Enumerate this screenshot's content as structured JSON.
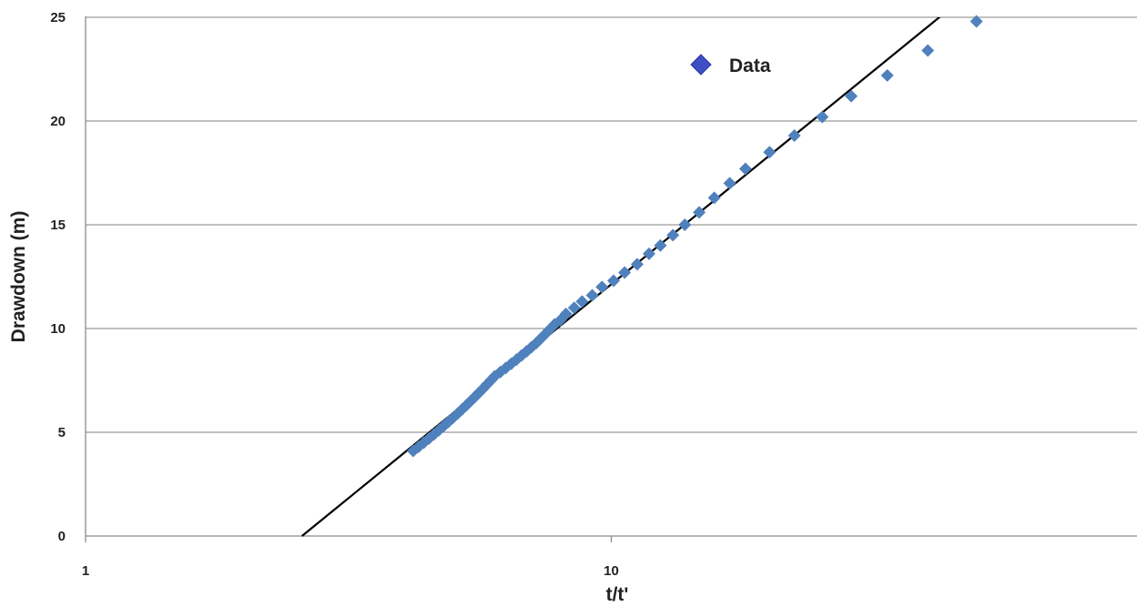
{
  "chart_data": {
    "type": "scatter",
    "title": "",
    "xlabel": "t/t'",
    "ylabel": "Drawdown (m)",
    "x_scale": "log",
    "xlim": [
      1,
      100
    ],
    "ylim": [
      0,
      25
    ],
    "x_ticks": [
      {
        "value": 1,
        "label": "1"
      },
      {
        "value": 10,
        "label": "10"
      }
    ],
    "y_ticks": [
      {
        "value": 0,
        "label": "0"
      },
      {
        "value": 5,
        "label": "5"
      },
      {
        "value": 10,
        "label": "10"
      },
      {
        "value": 15,
        "label": "15"
      },
      {
        "value": 20,
        "label": "20"
      },
      {
        "value": 25,
        "label": "25"
      }
    ],
    "grid": "horizontal",
    "legend": {
      "position": "top-right",
      "entries": [
        "Data"
      ]
    },
    "colors": {
      "marker": "#4f81bd",
      "legend_marker": "#3d4fc4",
      "fit_line": "#000000",
      "grid": "#9a9a9a"
    },
    "series": [
      {
        "name": "Data",
        "marker": "diamond",
        "x": [
          4.2,
          4.3,
          4.4,
          4.5,
          4.6,
          4.7,
          4.8,
          4.9,
          5.0,
          5.1,
          5.2,
          5.3,
          5.4,
          5.5,
          5.6,
          5.7,
          5.8,
          5.9,
          6.0,
          6.15,
          6.3,
          6.45,
          6.6,
          6.75,
          6.9,
          7.05,
          7.2,
          7.4,
          7.6,
          7.8,
          8.0,
          8.2,
          8.5,
          8.8,
          9.2,
          9.6,
          10.1,
          10.6,
          11.2,
          11.8,
          12.4,
          13.1,
          13.8,
          14.7,
          15.7,
          16.8,
          18.0,
          20.0,
          22.3,
          25.2,
          28.6,
          33.5,
          40.0,
          49.5
        ],
        "y": [
          4.1,
          4.3,
          4.5,
          4.7,
          4.9,
          5.1,
          5.3,
          5.5,
          5.7,
          5.9,
          6.1,
          6.3,
          6.5,
          6.7,
          6.9,
          7.1,
          7.3,
          7.5,
          7.7,
          7.9,
          8.1,
          8.3,
          8.5,
          8.7,
          8.9,
          9.1,
          9.3,
          9.6,
          9.9,
          10.2,
          10.4,
          10.7,
          11.0,
          11.3,
          11.6,
          12.0,
          12.3,
          12.7,
          13.1,
          13.6,
          14.0,
          14.5,
          15.0,
          15.6,
          16.3,
          17.0,
          17.7,
          18.5,
          19.3,
          20.2,
          21.2,
          22.2,
          23.4,
          24.8
        ]
      },
      {
        "name": "",
        "type": "line",
        "x": [
          2.58,
          43.5
        ],
        "y": [
          0,
          25.3
        ]
      }
    ]
  }
}
